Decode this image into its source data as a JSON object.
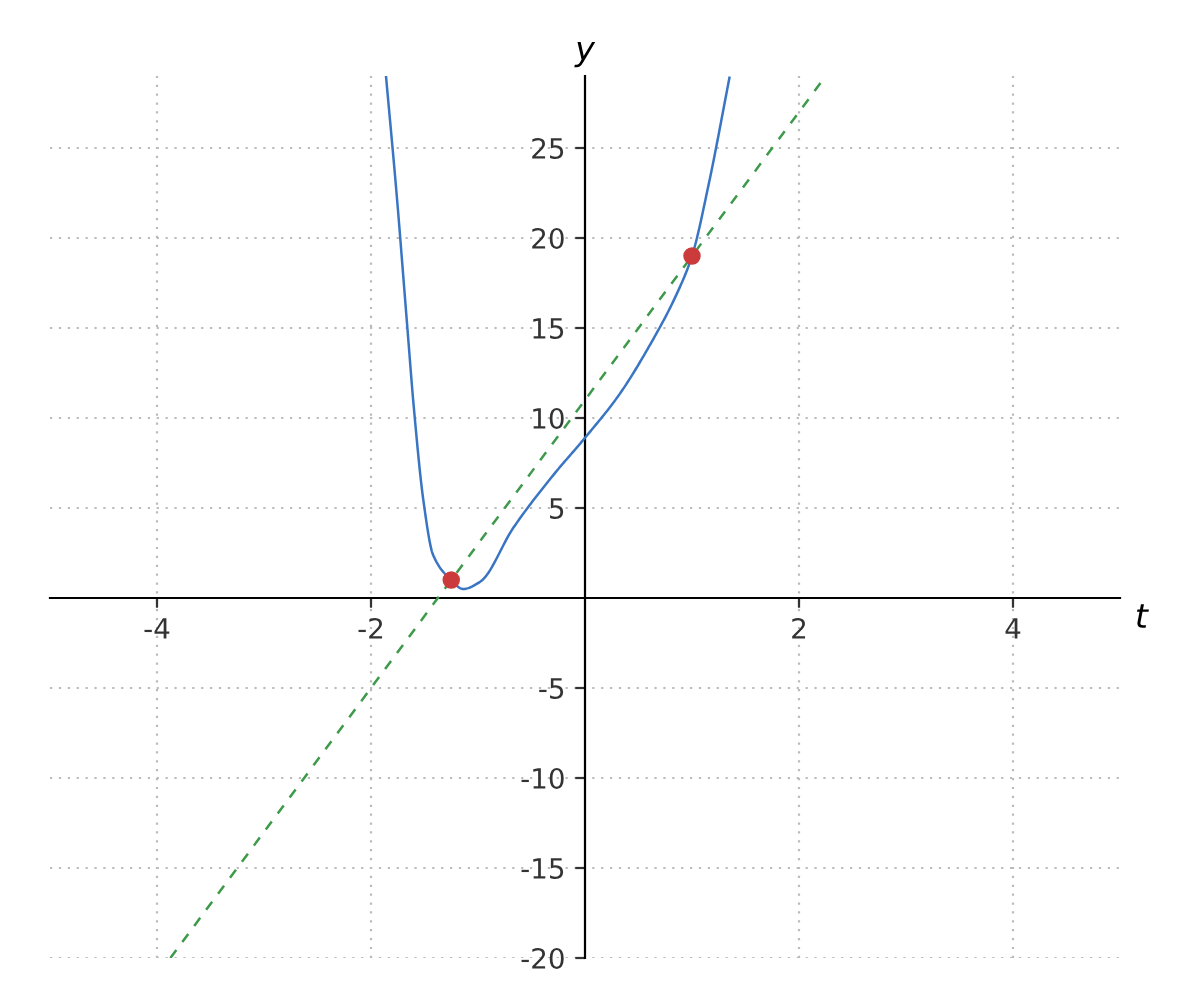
{
  "chart_data": {
    "type": "line",
    "xlabel": "t",
    "ylabel": "y",
    "xlim": [
      -5,
      5
    ],
    "ylim": [
      -20,
      29
    ],
    "xticks": [
      -4,
      -2,
      2,
      4
    ],
    "yticks": [
      -20,
      -15,
      -10,
      -5,
      5,
      10,
      15,
      20,
      25
    ],
    "grid": true,
    "series": [
      {
        "color": "#3a75c4",
        "line_style": "solid",
        "x": [
          -1.86,
          -1.76,
          -1.66,
          -1.6,
          -1.51,
          -1.42,
          -1.25,
          -1.14,
          -0.98,
          -0.67,
          -0.3,
          0,
          0.32,
          0.63,
          0.85,
          1,
          1.16,
          1.35
        ],
        "values": [
          29,
          22.4,
          15,
          10.6,
          5.4,
          2.4,
          1,
          0.5,
          0.9,
          3.9,
          6.8,
          8.9,
          11.3,
          14.3,
          16.8,
          19,
          23.1,
          28.9
        ]
      },
      {
        "type": "line",
        "color": "#3d9a4a",
        "line_style": "dashed",
        "x": [
          -3.875,
          2.25
        ],
        "values": [
          -20,
          29
        ]
      },
      {
        "type": "scatter",
        "color": "#cc3b3b",
        "marker": "circle",
        "x": [
          -1.25,
          1
        ],
        "values": [
          1,
          19
        ]
      }
    ]
  }
}
